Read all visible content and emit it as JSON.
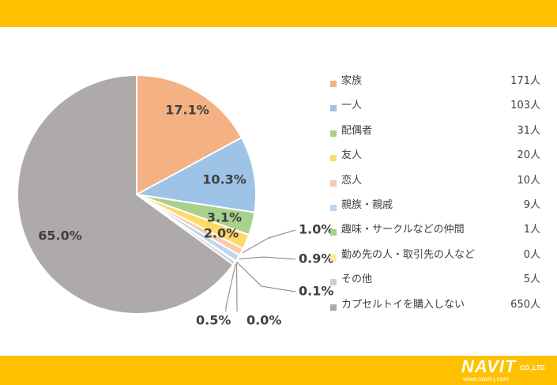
{
  "chart_data": {
    "type": "pie",
    "categories": [
      "家族",
      "一人",
      "配偶者",
      "友人",
      "恋人",
      "親族・親戚",
      "趣味・サークルなどの仲間",
      "勤め先の人・取引先の人など",
      "その他",
      "カプセルトイを購入しない"
    ],
    "counts": [
      "171人",
      "103人",
      "31人",
      "20人",
      "10人",
      "9人",
      "1人",
      "0人",
      "5人",
      "650人"
    ],
    "values": [
      17.1,
      10.3,
      3.1,
      2.0,
      1.0,
      0.9,
      0.1,
      0.0,
      0.5,
      65.0
    ],
    "labels": [
      "17.1%",
      "10.3%",
      "3.1%",
      "2.0%",
      "1.0%",
      "0.9%",
      "0.1%",
      "0.0%",
      "0.5%",
      "65.0%"
    ],
    "colors": [
      "#f4b183",
      "#9dc3e6",
      "#a9d18e",
      "#ffd966",
      "#f8cbad",
      "#bdd7ee",
      "#a9d18e",
      "#ffe699",
      "#d0cece",
      "#aeaaaa"
    ],
    "legend_position": "right"
  },
  "brand": {
    "name": "NAVIT",
    "suffix": "CO.,LTD.",
    "url": "www.navit-j.com"
  },
  "colors": {
    "bar": "#ffc000"
  }
}
